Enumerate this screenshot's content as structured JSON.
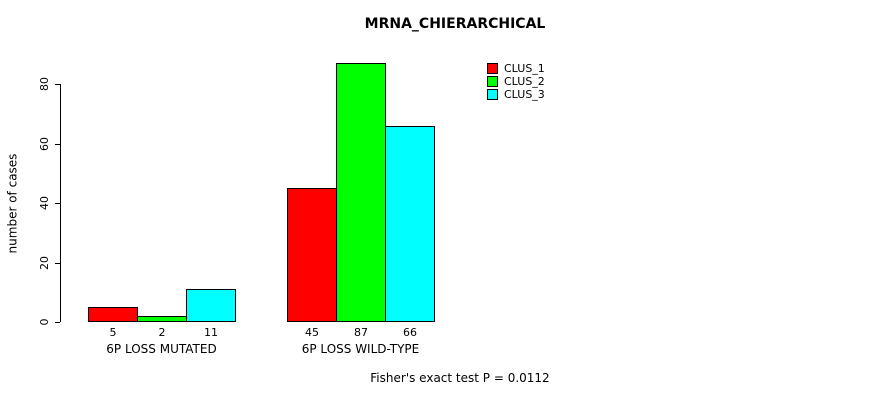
{
  "chart_data": {
    "type": "bar",
    "title": "MRNA_CHIERARCHICAL",
    "xlabel": "",
    "ylabel": "number of cases",
    "ylim": [
      0,
      87
    ],
    "yticks": [
      0,
      20,
      40,
      60,
      80
    ],
    "grid": false,
    "legend_position": "top-right",
    "categories": [
      "6P LOSS MUTATED",
      "6P LOSS WILD-TYPE"
    ],
    "series": [
      {
        "name": "CLUS_1",
        "color": "#FF0000",
        "values": [
          5,
          45
        ]
      },
      {
        "name": "CLUS_2",
        "color": "#00FF00",
        "values": [
          2,
          87
        ]
      },
      {
        "name": "CLUS_3",
        "color": "#00FFFF",
        "values": [
          11,
          66
        ]
      }
    ],
    "bar_value_labels": [
      [
        5,
        2,
        11
      ],
      [
        45,
        87,
        66
      ]
    ],
    "annotation": "Fisher's exact test P = 0.0112"
  }
}
